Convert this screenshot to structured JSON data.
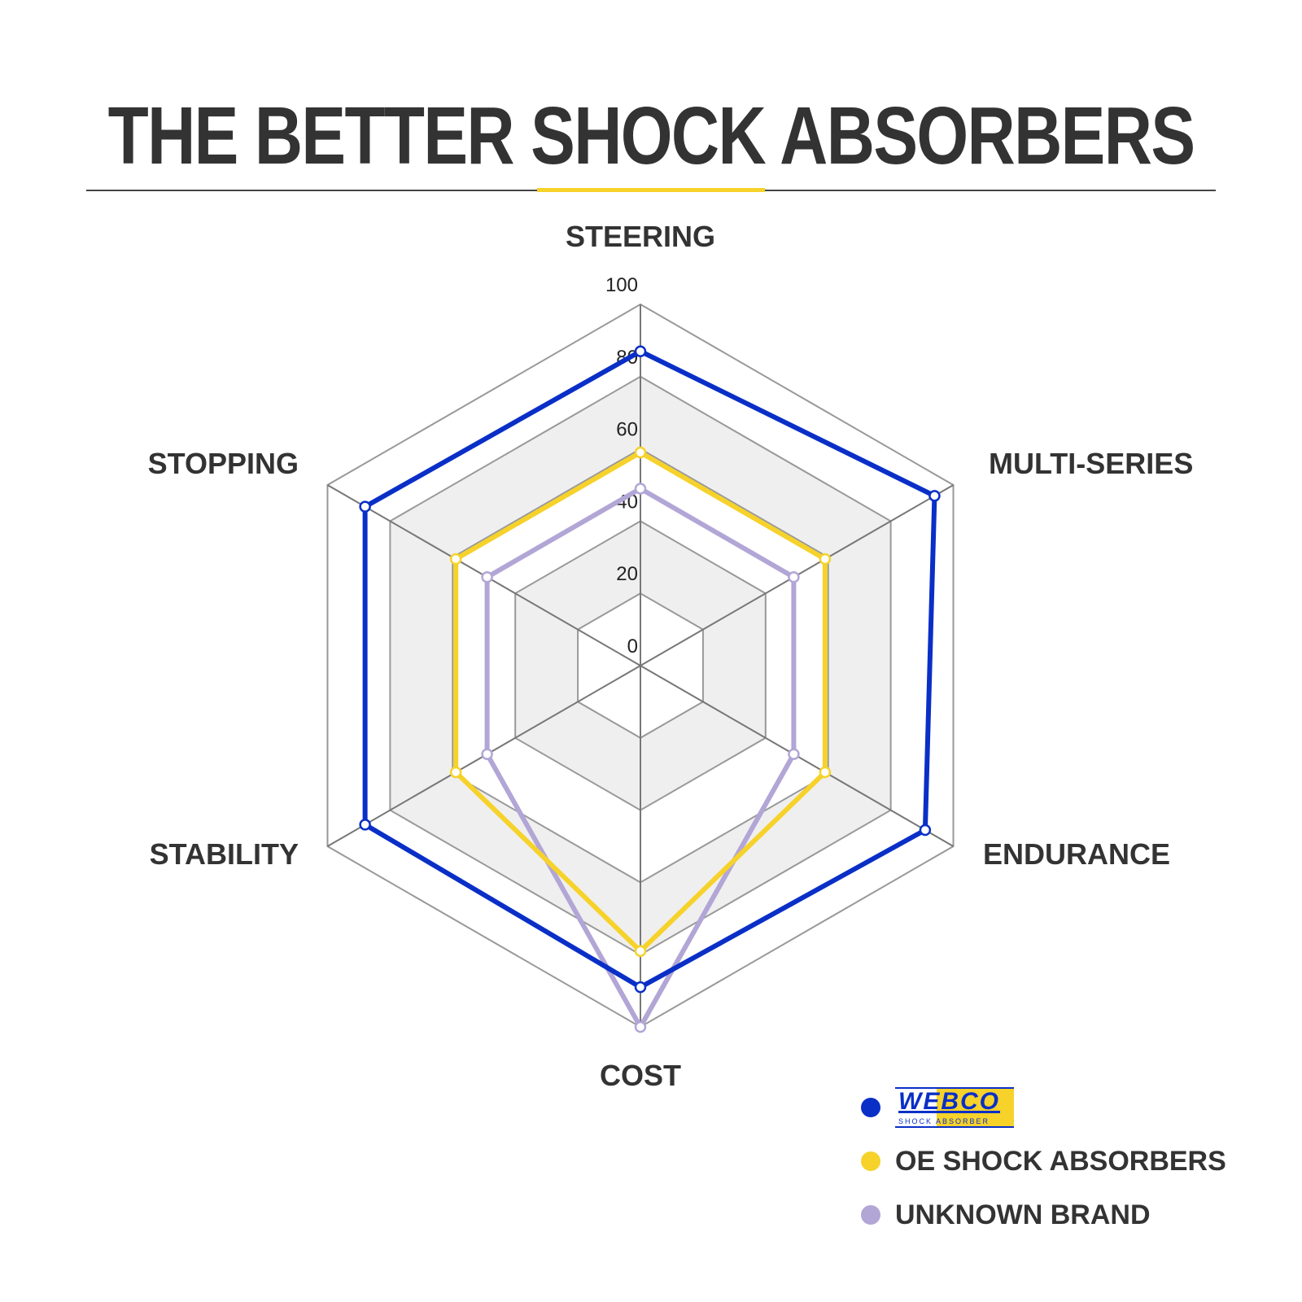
{
  "title": "THE BETTER SHOCK ABSORBERS",
  "colors": {
    "accent": "#f6d22a",
    "webco": "#0a2fc7",
    "oe": "#f6d22a",
    "unknown": "#b2a6d6"
  },
  "chart_data": {
    "type": "radar",
    "title": "",
    "axes": [
      "STEERING",
      "MULTI-SERIES",
      "ENDURANCE",
      "COST",
      "STABILITY",
      "STOPPING"
    ],
    "range": [
      0,
      100
    ],
    "ticks": [
      "0",
      "20",
      "40",
      "60",
      "80",
      "100"
    ],
    "series": [
      {
        "name": "WEBCO SHOCK ABSORBER",
        "color": "#0a2fc7",
        "values": [
          87,
          94,
          91,
          89,
          88,
          88
        ]
      },
      {
        "name": "OE SHOCK ABSORBERS",
        "color": "#f6d22a",
        "values": [
          59,
          59,
          59,
          79,
          59,
          59
        ]
      },
      {
        "name": "UNKNOWN BRAND",
        "color": "#b2a6d6",
        "values": [
          49,
          49,
          49,
          100,
          49,
          49
        ]
      }
    ],
    "legend_placement": "bottom-right"
  },
  "legend": {
    "logo_main": "WEBCO",
    "logo_sub": "SHOCK ABSORBER",
    "oe": "OE SHOCK ABSORBERS",
    "unknown": "UNKNOWN BRAND"
  }
}
